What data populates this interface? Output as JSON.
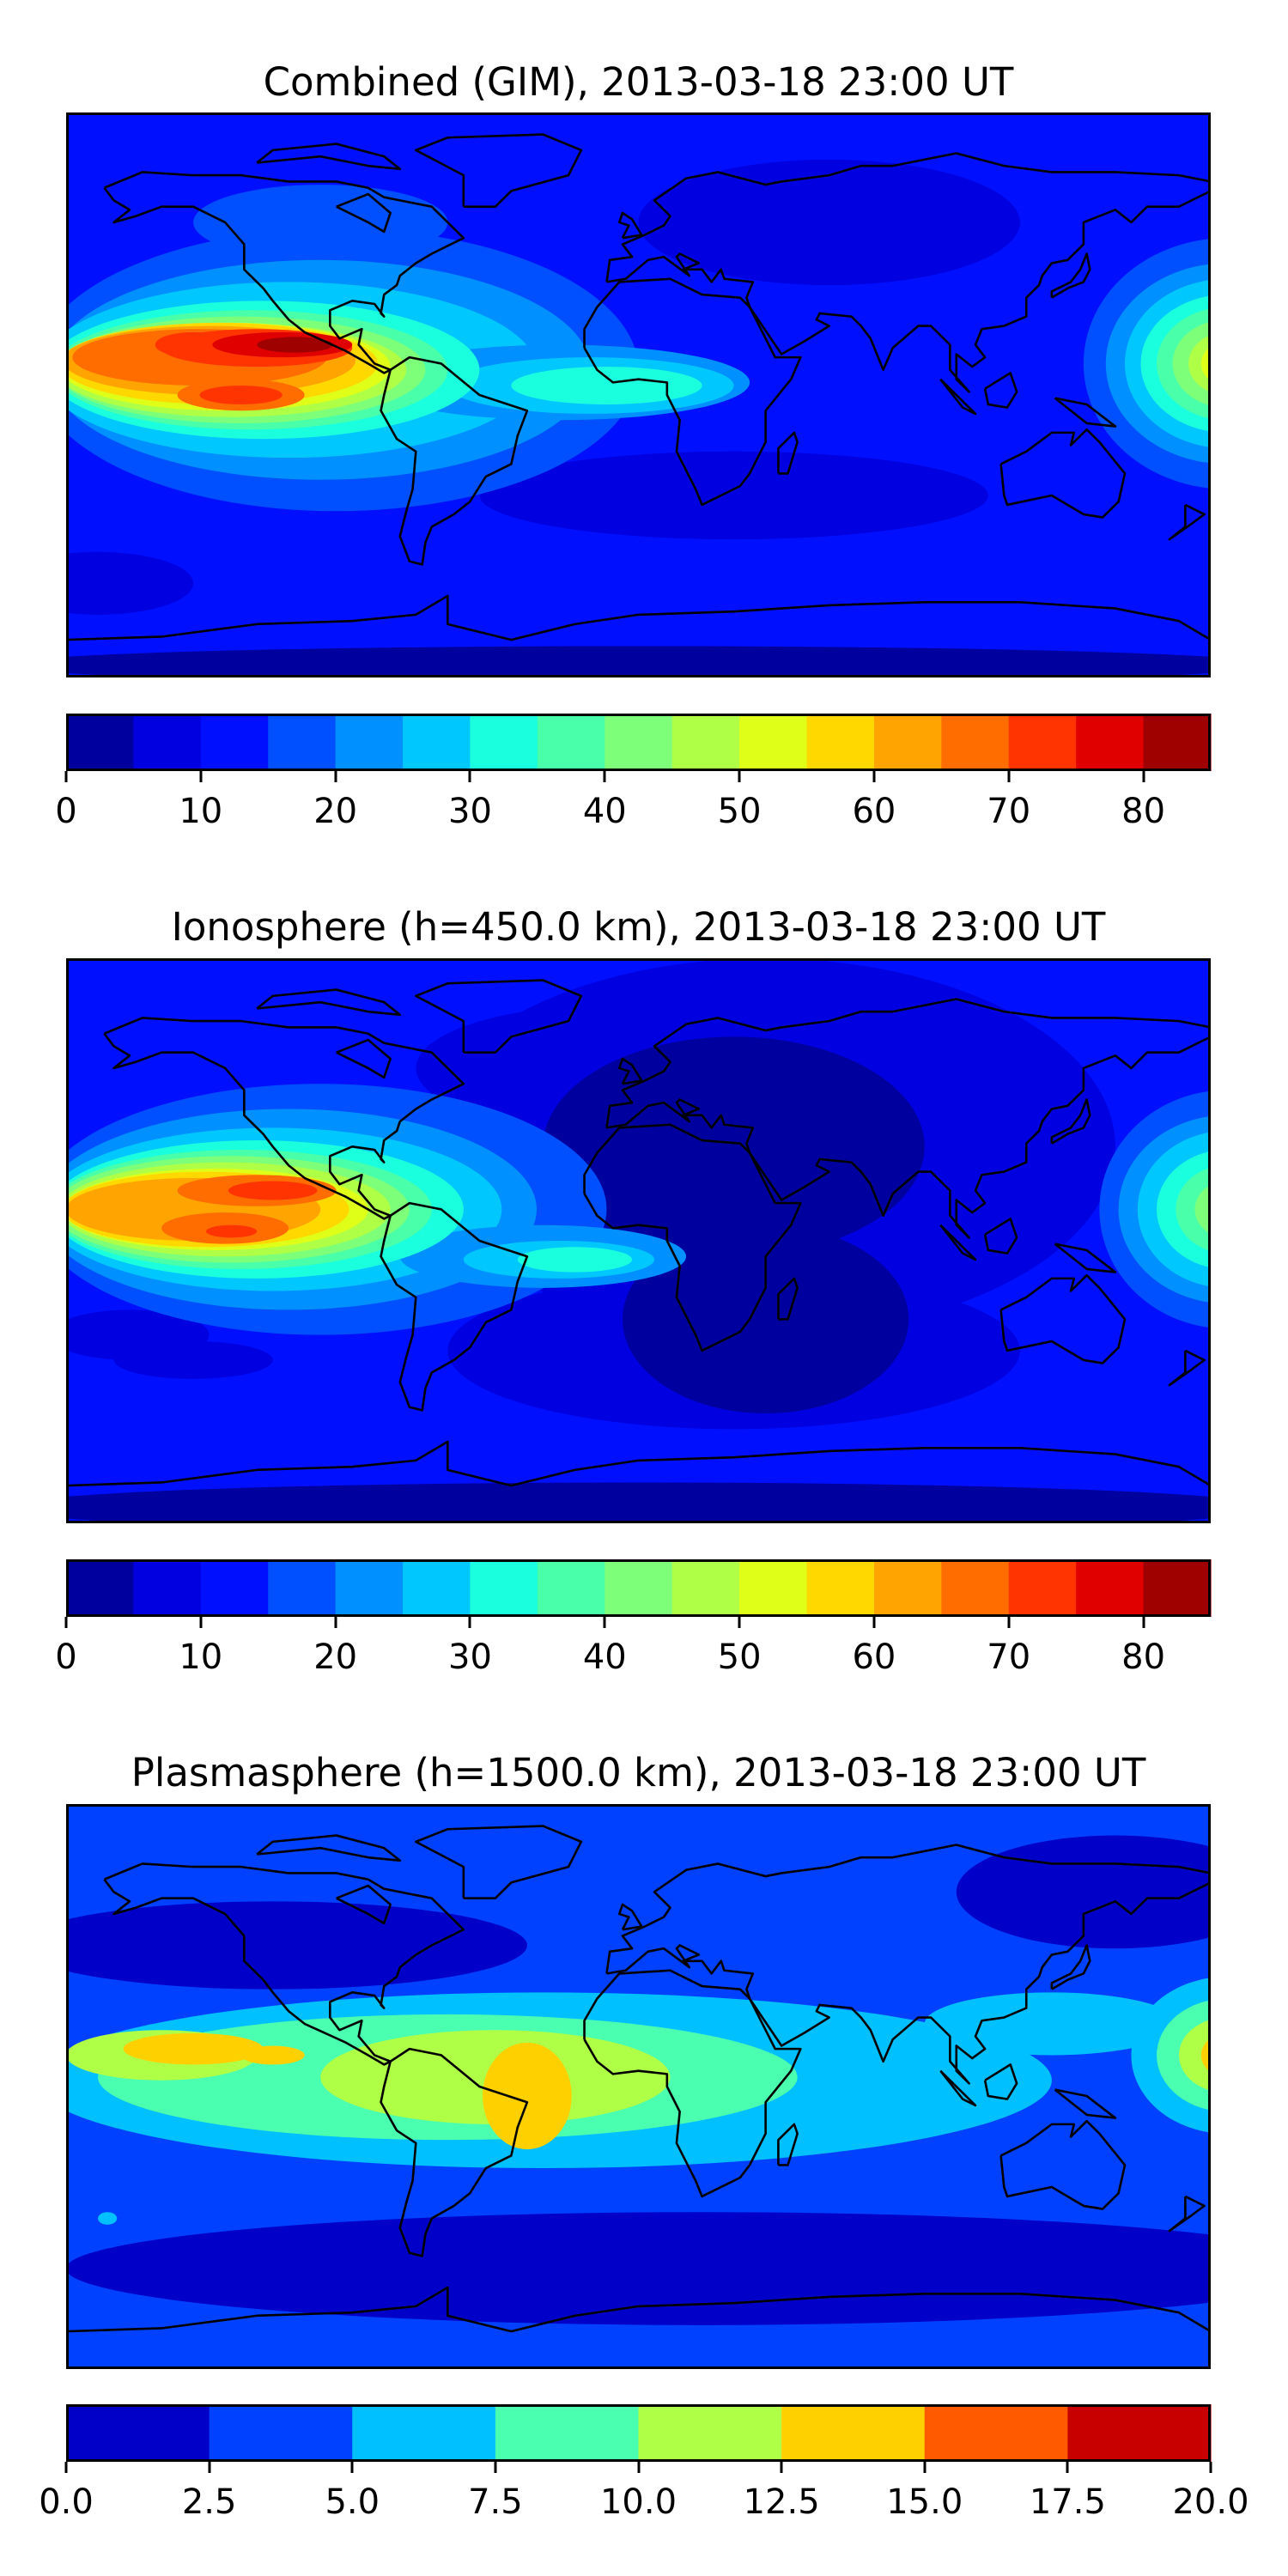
{
  "chart_data": [
    {
      "type": "heatmap",
      "title": "Combined (GIM), 2013-03-18 23:00 UT",
      "colorbar": {
        "levels": [
          0,
          5,
          10,
          15,
          20,
          25,
          30,
          35,
          40,
          45,
          50,
          55,
          60,
          65,
          70,
          75,
          80,
          85
        ],
        "colors": [
          "#00009f",
          "#0000e0",
          "#0010ff",
          "#0050ff",
          "#0090ff",
          "#00c8ff",
          "#1affdd",
          "#4affaa",
          "#7dff7a",
          "#b0ff47",
          "#dfff18",
          "#ffd800",
          "#ffa400",
          "#ff6c00",
          "#ff3400",
          "#e00000",
          "#9f0000"
        ],
        "ticks": [
          0,
          10,
          20,
          30,
          40,
          50,
          60,
          70,
          80
        ],
        "tick_labels": [
          "0",
          "10",
          "20",
          "30",
          "40",
          "50",
          "60",
          "70",
          "80"
        ],
        "range": [
          0,
          85
        ]
      }
    },
    {
      "type": "heatmap",
      "title": "Ionosphere  (h=450.0 km), 2013-03-18 23:00 UT",
      "colorbar": {
        "levels": [
          0,
          5,
          10,
          15,
          20,
          25,
          30,
          35,
          40,
          45,
          50,
          55,
          60,
          65,
          70,
          75,
          80,
          85
        ],
        "colors": [
          "#00009f",
          "#0000e0",
          "#0010ff",
          "#0050ff",
          "#0090ff",
          "#00c8ff",
          "#1affdd",
          "#4affaa",
          "#7dff7a",
          "#b0ff47",
          "#dfff18",
          "#ffd800",
          "#ffa400",
          "#ff6c00",
          "#ff3400",
          "#e00000",
          "#9f0000"
        ],
        "ticks": [
          0,
          10,
          20,
          30,
          40,
          50,
          60,
          70,
          80
        ],
        "tick_labels": [
          "0",
          "10",
          "20",
          "30",
          "40",
          "50",
          "60",
          "70",
          "80"
        ],
        "range": [
          0,
          85
        ]
      }
    },
    {
      "type": "heatmap",
      "title": "Plasmasphere (h=1500.0 km), 2013-03-18 23:00 UT",
      "colorbar": {
        "levels": [
          0,
          2.5,
          5,
          7.5,
          10,
          12.5,
          15,
          17.5,
          20
        ],
        "colors": [
          "#0000c8",
          "#0040ff",
          "#00c0ff",
          "#4affb0",
          "#b0ff47",
          "#ffd000",
          "#ff5a00",
          "#c80000"
        ],
        "ticks": [
          0,
          2.5,
          5,
          7.5,
          10,
          12.5,
          15,
          17.5,
          20
        ],
        "tick_labels": [
          "0.0",
          "2.5",
          "5.0",
          "7.5",
          "10.0",
          "12.5",
          "15.0",
          "17.5",
          "20.0"
        ],
        "range": [
          0,
          20
        ]
      }
    }
  ]
}
